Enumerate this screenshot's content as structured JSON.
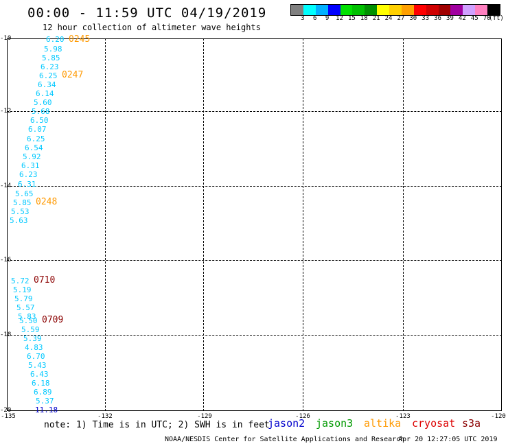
{
  "header": {
    "title": "00:00 - 11:59 UTC 04/19/2019",
    "subtitle": "12 hour collection of altimeter wave heights"
  },
  "color_scale": {
    "colors": [
      "#808080",
      "#00ffff",
      "#00b0ff",
      "#0000ff",
      "#00e000",
      "#00c000",
      "#009000",
      "#ffff00",
      "#ffd000",
      "#ffa000",
      "#ff0000",
      "#d00000",
      "#a00000",
      "#a000a0",
      "#d0a0ff",
      "#ff80c0",
      "#000000"
    ],
    "labels": [
      "3",
      "6",
      "9",
      "12",
      "15",
      "18",
      "21",
      "24",
      "27",
      "30",
      "33",
      "36",
      "39",
      "42",
      "45",
      "70",
      "(ft)"
    ]
  },
  "axes": {
    "lat_labels": [
      "-10",
      "-12",
      "-14",
      "-16",
      "-18",
      "-20"
    ],
    "lon_labels": [
      "-135",
      "-132",
      "-129",
      "-126",
      "-123",
      "-120"
    ]
  },
  "wave_heights": [
    "6.20",
    "5.98",
    "5.85",
    "6.23",
    "6.25",
    "6.34",
    "6.14",
    "5.60",
    "5.68",
    "6.50",
    "6.07",
    "6.25",
    "6.54",
    "5.92",
    "6.31",
    "6.23",
    "6.31",
    "5.65",
    "5.85",
    "5.53",
    "5.63",
    "5.72",
    "5.19",
    "5.79",
    "5.57",
    "5.83",
    "5.50",
    "5.59",
    "5.39",
    "4.83",
    "6.70",
    "5.43",
    "6.43",
    "6.18",
    "6.89",
    "5.37",
    "11.18"
  ],
  "pass_times": [
    "0245",
    "0247",
    "0248",
    "0710",
    "0709"
  ],
  "note": "note: 1) Time is in UTC; 2) SWH is in feet",
  "satellites": [
    {
      "name": "jason2",
      "color": "#0000cc"
    },
    {
      "name": "jason3",
      "color": "#009900"
    },
    {
      "name": "altika",
      "color": "#ff9900"
    },
    {
      "name": "cryosat",
      "color": "#dd0000"
    },
    {
      "name": "s3a",
      "color": "#8b0000"
    }
  ],
  "footer": "NOAA/NESDIS Center for Satellite Applications and Research",
  "timestamp": "Apr 20 12:27:05 UTC 2019"
}
